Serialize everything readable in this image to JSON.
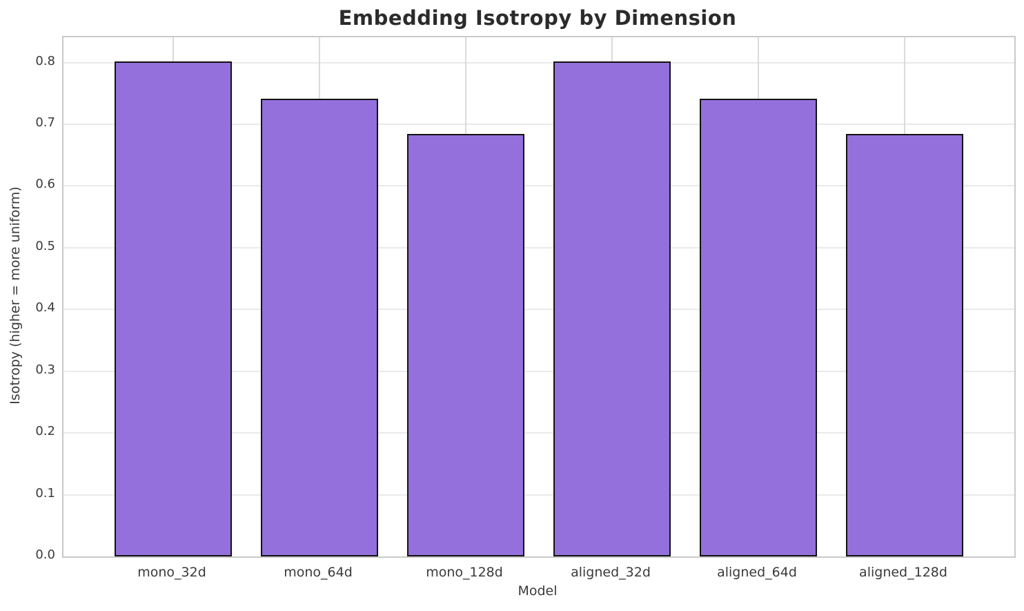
{
  "chart_data": {
    "type": "bar",
    "title": "Embedding Isotropy by Dimension",
    "xlabel": "Model",
    "ylabel": "Isotropy (higher = more uniform)",
    "categories": [
      "mono_32d",
      "mono_64d",
      "mono_128d",
      "aligned_32d",
      "aligned_64d",
      "aligned_128d"
    ],
    "values": [
      0.802,
      0.742,
      0.685,
      0.802,
      0.742,
      0.685
    ],
    "ylim": [
      0,
      0.841
    ],
    "yticks": [
      0.0,
      0.1,
      0.2,
      0.3,
      0.4,
      0.5,
      0.6,
      0.7,
      0.8
    ],
    "ytick_labels": [
      "0.0",
      "0.1",
      "0.2",
      "0.3",
      "0.4",
      "0.5",
      "0.6",
      "0.7",
      "0.8"
    ],
    "grid": true,
    "legend": false,
    "bar_color": "#9370DB",
    "bar_edge_color": "#111111",
    "grid_color_h": "#e9e9e9",
    "grid_color_v": "#dadada",
    "spine_color": "#c9c9c9",
    "title_color": "#2b2b2b",
    "text_color": "#3a3a3a"
  }
}
